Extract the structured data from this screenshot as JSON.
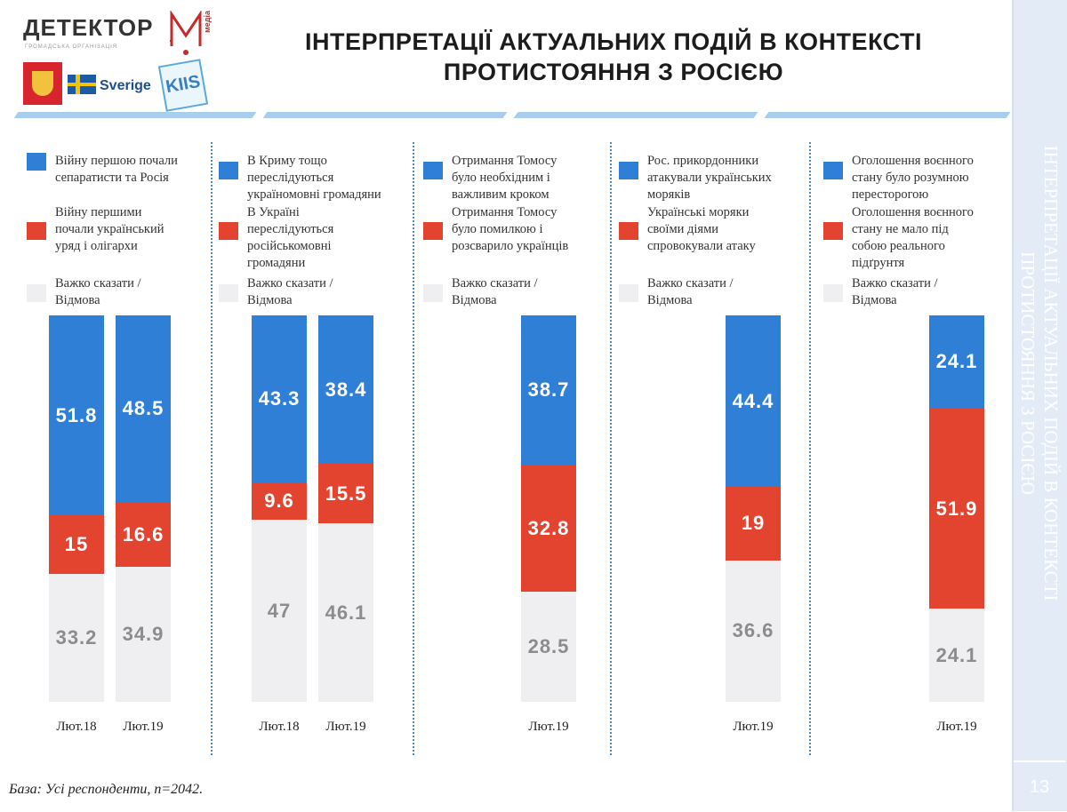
{
  "brand": {
    "logo_text": "ДЕТЕКТОР",
    "logo_m": "M",
    "logo_media": "медіа",
    "logo_sub": "ГРОМАДСЬКА ОРГАНІЗАЦІЯ",
    "partner": "Sverige",
    "kiis": "KIIS"
  },
  "header": {
    "title_line1": "ІНТЕРПРЕТАЦІЇ АКТУАЛЬНИХ ПОДІЙ В КОНТЕКСТІ",
    "title_line2": "ПРОТИСТОЯННЯ З РОСІЄЮ"
  },
  "side": {
    "line1": "ІНТЕРПРЕТАЦІЇ АКТУАЛЬНИХ ПОДІЙ В КОНТЕКСТІ",
    "line2": "ПРОТИСТОЯННЯ З РОСІЄЮ",
    "page_number": "13"
  },
  "footnote": "База: Усі респонденти, n=2042.",
  "colors": {
    "blue": "#2f7fd6",
    "red": "#e3442f",
    "gray": "#efeff1"
  },
  "chart_data": [
    {
      "type": "bar",
      "stacked": true,
      "legend": [
        "Війну першою почали\nсепаратисти та Росія",
        "Війну першими\nпочали український\nуряд і олігархи",
        "Важко сказати /\nВідмова"
      ],
      "categories": [
        "Лют.18",
        "Лют.19"
      ],
      "series": [
        {
          "name": "Війну першою почали сепаратисти та Росія",
          "values": [
            51.8,
            48.5
          ]
        },
        {
          "name": "Війну першими почали український уряд і олігархи",
          "values": [
            15,
            16.6
          ]
        },
        {
          "name": "Важко сказати / Відмова",
          "values": [
            33.2,
            34.9
          ]
        }
      ]
    },
    {
      "type": "bar",
      "stacked": true,
      "legend": [
        "В Криму тощо\nпереслідуються\nукраїномовні громадяни",
        "В Україні\nпереслідуються\nросійськомовні\nгромадяни",
        "Важко сказати /\nВідмова"
      ],
      "categories": [
        "Лют.18",
        "Лют.19"
      ],
      "series": [
        {
          "name": "В Криму тощо переслідуються україномовні громадяни",
          "values": [
            43.3,
            38.4
          ]
        },
        {
          "name": "В Україні переслідуються російськомовні громадяни",
          "values": [
            9.6,
            15.5
          ]
        },
        {
          "name": "Важко сказати / Відмова",
          "values": [
            47,
            46.1
          ]
        }
      ]
    },
    {
      "type": "bar",
      "stacked": true,
      "legend": [
        "Отримання Томосу\nбуло необхідним і\nважливим кроком",
        "Отримання Томосу\nбуло помилкою і\nрозсварило українців",
        "Важко сказати /\nВідмова"
      ],
      "categories": [
        "Лют.19"
      ],
      "series": [
        {
          "name": "Отримання Томосу було необхідним і важливим кроком",
          "values": [
            38.7
          ]
        },
        {
          "name": "Отримання Томосу було помилкою і розсварило українців",
          "values": [
            32.8
          ]
        },
        {
          "name": "Важко сказати / Відмова",
          "values": [
            28.5
          ]
        }
      ]
    },
    {
      "type": "bar",
      "stacked": true,
      "legend": [
        "Рос. прикордонники\nатакували українських\nморяків",
        "Українські моряки\nсвоїми діями\nспровокували атаку",
        "Важко сказати /\nВідмова"
      ],
      "categories": [
        "Лют.19"
      ],
      "series": [
        {
          "name": "Рос. прикордонники атакували українських моряків",
          "values": [
            44.4
          ]
        },
        {
          "name": "Українські моряки своїми діями спровокували атаку",
          "values": [
            19
          ]
        },
        {
          "name": "Важко сказати / Відмова",
          "values": [
            36.6
          ]
        }
      ]
    },
    {
      "type": "bar",
      "stacked": true,
      "legend": [
        "Оголошення воєнного\nстану було розумною\nперестор​огою",
        "Оголошення воєнного\nстану не мало під\nсобою реального\nпідґрунтя",
        "Важко сказати /\nВідмова"
      ],
      "categories": [
        "Лют.19"
      ],
      "series": [
        {
          "name": "Оголошення воєнного стану було розумною перестор​огою",
          "values": [
            24.1
          ]
        },
        {
          "name": "Оголошення воєнного стану не мало під собою реального підґрунтя",
          "values": [
            51.9
          ]
        },
        {
          "name": "Важко сказати / Відмова",
          "values": [
            24.1
          ]
        }
      ]
    }
  ]
}
